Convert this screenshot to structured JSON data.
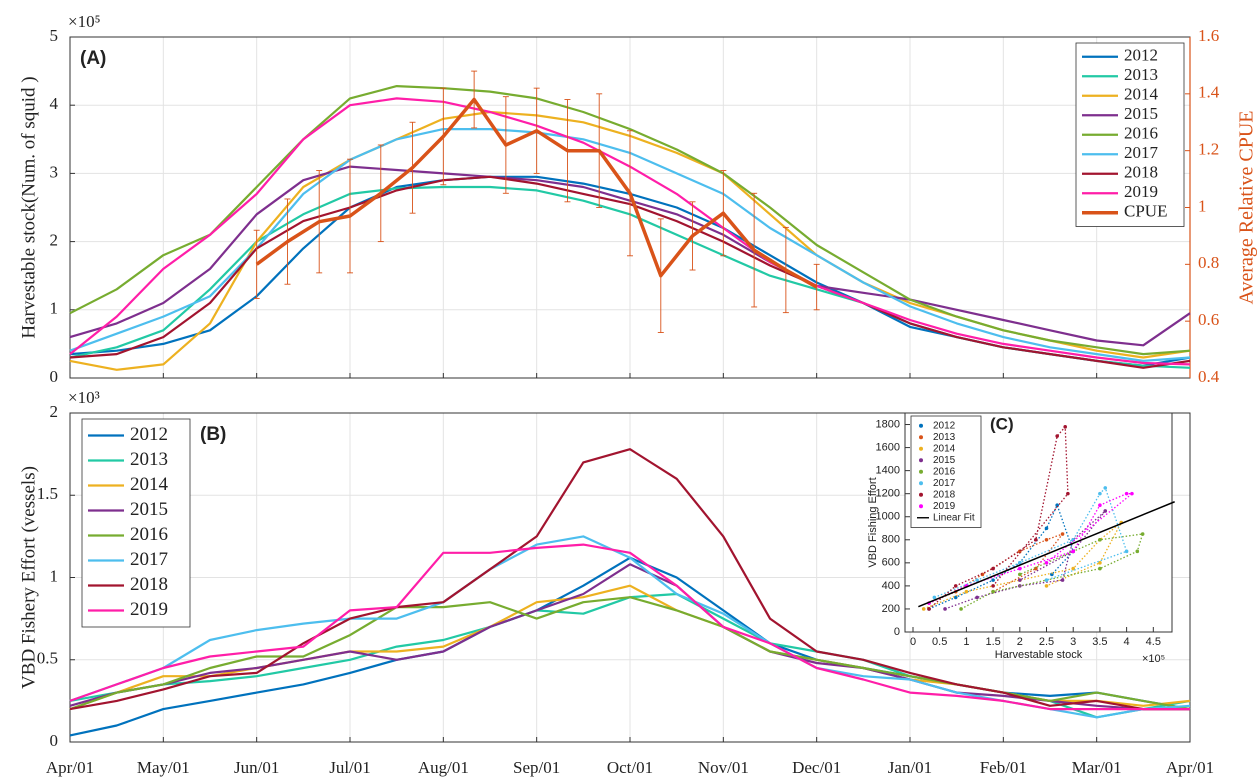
{
  "chart_data": [
    {
      "type": "line",
      "panel_label": "(A)",
      "y_label": "Harvestable stock(Num. of squid )",
      "y_exponent": "×10⁵",
      "y2_label": "Average Relative CPUE",
      "y2_color": "#D95319",
      "x": [
        0,
        0.5,
        1,
        1.5,
        2,
        2.5,
        3,
        3.5,
        4,
        4.5,
        5,
        5.5,
        6,
        6.5,
        7,
        7.5,
        8,
        8.5,
        9,
        9.5,
        10,
        10.5,
        11,
        11.5,
        12
      ],
      "xlim": [
        0,
        12
      ],
      "xticks": [
        0,
        1,
        2,
        3,
        4,
        5,
        6,
        7,
        8,
        9,
        10,
        11,
        12
      ],
      "ylim": [
        0,
        5
      ],
      "yticks": [
        0,
        1,
        2,
        3,
        4,
        5
      ],
      "y2lim": [
        0.4,
        1.6
      ],
      "y2ticks": [
        0.4,
        0.6,
        0.8,
        1,
        1.2,
        1.4,
        1.6
      ],
      "grid": true,
      "legend": "upper right",
      "series": [
        {
          "name": "2012",
          "color": "#0072BD",
          "values": [
            0.35,
            0.4,
            0.5,
            0.7,
            1.2,
            1.9,
            2.5,
            2.8,
            2.9,
            2.95,
            2.95,
            2.85,
            2.7,
            2.5,
            2.2,
            1.8,
            1.4,
            1.1,
            0.75,
            0.6,
            0.45,
            0.35,
            0.25,
            0.18,
            0.3
          ]
        },
        {
          "name": "2013",
          "color": "#22C9A5",
          "values": [
            0.3,
            0.45,
            0.7,
            1.3,
            2.0,
            2.4,
            2.7,
            2.78,
            2.8,
            2.8,
            2.75,
            2.6,
            2.4,
            2.1,
            1.8,
            1.5,
            1.3,
            1.1,
            0.8,
            0.6,
            0.45,
            0.35,
            0.25,
            0.18,
            0.15
          ]
        },
        {
          "name": "2014",
          "color": "#EDB120",
          "values": [
            0.25,
            0.12,
            0.2,
            0.8,
            2.0,
            2.8,
            3.2,
            3.5,
            3.8,
            3.9,
            3.85,
            3.75,
            3.55,
            3.3,
            3.0,
            2.4,
            1.8,
            1.4,
            1.1,
            0.9,
            0.7,
            0.55,
            0.4,
            0.3,
            0.4
          ]
        },
        {
          "name": "2015",
          "color": "#7E2F8E",
          "values": [
            0.6,
            0.8,
            1.1,
            1.6,
            2.4,
            2.9,
            3.1,
            3.05,
            3.0,
            2.95,
            2.9,
            2.8,
            2.6,
            2.4,
            2.1,
            1.7,
            1.35,
            1.25,
            1.15,
            1.0,
            0.85,
            0.7,
            0.55,
            0.48,
            0.95
          ]
        },
        {
          "name": "2016",
          "color": "#77AC30",
          "values": [
            0.95,
            1.3,
            1.8,
            2.1,
            2.8,
            3.5,
            4.1,
            4.28,
            4.25,
            4.2,
            4.1,
            3.9,
            3.65,
            3.35,
            3.0,
            2.5,
            1.95,
            1.55,
            1.15,
            0.9,
            0.7,
            0.55,
            0.45,
            0.35,
            0.4
          ]
        },
        {
          "name": "2017",
          "color": "#4DBEEE",
          "values": [
            0.4,
            0.65,
            0.9,
            1.2,
            1.9,
            2.7,
            3.2,
            3.5,
            3.65,
            3.65,
            3.6,
            3.5,
            3.3,
            3.0,
            2.7,
            2.2,
            1.8,
            1.4,
            1.05,
            0.8,
            0.6,
            0.45,
            0.35,
            0.25,
            0.3
          ]
        },
        {
          "name": "2018",
          "color": "#A2142F",
          "values": [
            0.3,
            0.35,
            0.6,
            1.1,
            1.9,
            2.3,
            2.5,
            2.75,
            2.9,
            2.95,
            2.85,
            2.7,
            2.55,
            2.3,
            2.0,
            1.65,
            1.35,
            1.1,
            0.8,
            0.6,
            0.45,
            0.35,
            0.25,
            0.15,
            0.25
          ]
        },
        {
          "name": "2019",
          "color": "#FF1EA8",
          "values": [
            0.35,
            0.9,
            1.6,
            2.1,
            2.7,
            3.5,
            4.0,
            4.1,
            4.05,
            3.9,
            3.7,
            3.45,
            3.1,
            2.7,
            2.2,
            1.7,
            1.35,
            1.1,
            0.85,
            0.65,
            0.5,
            0.4,
            0.3,
            0.22,
            0.2
          ]
        },
        {
          "name": "CPUE",
          "color": "#D95319",
          "axis": "y2",
          "x": [
            2.0,
            2.33,
            2.67,
            3.0,
            3.33,
            3.67,
            4.0,
            4.33,
            4.67,
            5.0,
            5.33,
            5.67,
            6.0,
            6.33,
            6.67,
            7.0,
            7.33,
            7.67,
            8.0
          ],
          "values": [
            0.8,
            0.88,
            0.95,
            0.97,
            1.05,
            1.14,
            1.25,
            1.38,
            1.22,
            1.27,
            1.2,
            1.2,
            1.05,
            0.76,
            0.9,
            0.98,
            0.85,
            0.78,
            0.72
          ],
          "errors": [
            0.12,
            0.15,
            0.18,
            0.2,
            0.17,
            0.16,
            0.17,
            0.1,
            0.17,
            0.15,
            0.18,
            0.2,
            0.22,
            0.2,
            0.12,
            0.15,
            0.2,
            0.15,
            0.08
          ]
        }
      ]
    },
    {
      "type": "line",
      "panel_label": "(B)",
      "y_label": "VBD Fishery Effort (vessels)",
      "y_exponent": "×10³",
      "x": [
        0,
        0.5,
        1,
        1.5,
        2,
        2.5,
        3,
        3.5,
        4,
        4.5,
        5,
        5.5,
        6,
        6.5,
        7,
        7.5,
        8,
        8.5,
        9,
        9.5,
        10,
        10.5,
        11,
        11.5,
        12
      ],
      "xlim": [
        0,
        12
      ],
      "xticks": [
        {
          "value": 0,
          "label": "Apr/01"
        },
        {
          "value": 1,
          "label": "May/01"
        },
        {
          "value": 2,
          "label": "Jun/01"
        },
        {
          "value": 3,
          "label": "Jul/01"
        },
        {
          "value": 4,
          "label": "Aug/01"
        },
        {
          "value": 5,
          "label": "Sep/01"
        },
        {
          "value": 6,
          "label": "Oct/01"
        },
        {
          "value": 7,
          "label": "Nov/01"
        },
        {
          "value": 8,
          "label": "Dec/01"
        },
        {
          "value": 9,
          "label": "Jan/01"
        },
        {
          "value": 10,
          "label": "Feb/01"
        },
        {
          "value": 11,
          "label": "Mar/01"
        },
        {
          "value": 12,
          "label": "Apr/01"
        }
      ],
      "ylim": [
        0,
        2
      ],
      "yticks": [
        0,
        0.5,
        1,
        1.5,
        2
      ],
      "grid": true,
      "legend": "upper left",
      "series": [
        {
          "name": "2012",
          "color": "#0072BD",
          "values": [
            0.04,
            0.1,
            0.2,
            0.25,
            0.3,
            0.35,
            0.42,
            0.5,
            0.55,
            0.7,
            0.8,
            0.95,
            1.12,
            1.0,
            0.8,
            0.6,
            0.5,
            0.45,
            0.4,
            0.35,
            0.3,
            0.28,
            0.3,
            0.25,
            0.2
          ]
        },
        {
          "name": "2013",
          "color": "#22C9A5",
          "values": [
            0.25,
            0.3,
            0.35,
            0.37,
            0.4,
            0.45,
            0.5,
            0.58,
            0.62,
            0.7,
            0.8,
            0.78,
            0.88,
            0.9,
            0.75,
            0.6,
            0.55,
            0.5,
            0.4,
            0.35,
            0.3,
            0.25,
            0.15,
            0.2,
            0.25
          ]
        },
        {
          "name": "2014",
          "color": "#EDB120",
          "values": [
            0.2,
            0.3,
            0.4,
            0.4,
            0.45,
            0.5,
            0.55,
            0.55,
            0.58,
            0.7,
            0.85,
            0.88,
            0.95,
            0.8,
            0.7,
            0.55,
            0.5,
            0.45,
            0.38,
            0.35,
            0.3,
            0.25,
            0.25,
            0.22,
            0.25
          ]
        },
        {
          "name": "2015",
          "color": "#7E2F8E",
          "values": [
            0.22,
            0.3,
            0.35,
            0.42,
            0.45,
            0.5,
            0.55,
            0.5,
            0.55,
            0.7,
            0.8,
            0.9,
            1.08,
            0.95,
            0.7,
            0.55,
            0.48,
            0.45,
            0.38,
            0.3,
            0.28,
            0.25,
            0.22,
            0.2,
            0.2
          ]
        },
        {
          "name": "2016",
          "color": "#77AC30",
          "values": [
            0.2,
            0.3,
            0.35,
            0.45,
            0.52,
            0.52,
            0.65,
            0.82,
            0.82,
            0.85,
            0.75,
            0.85,
            0.88,
            0.8,
            0.7,
            0.55,
            0.5,
            0.45,
            0.4,
            0.35,
            0.3,
            0.25,
            0.3,
            0.25,
            0.2
          ]
        },
        {
          "name": "2017",
          "color": "#4DBEEE",
          "values": [
            0.25,
            0.35,
            0.45,
            0.62,
            0.68,
            0.72,
            0.75,
            0.75,
            0.85,
            1.05,
            1.2,
            1.25,
            1.12,
            0.9,
            0.78,
            0.6,
            0.45,
            0.4,
            0.38,
            0.3,
            0.25,
            0.2,
            0.15,
            0.2,
            0.22
          ]
        },
        {
          "name": "2018",
          "color": "#A2142F",
          "values": [
            0.2,
            0.25,
            0.32,
            0.4,
            0.42,
            0.6,
            0.75,
            0.82,
            0.85,
            1.05,
            1.25,
            1.7,
            1.78,
            1.6,
            1.25,
            0.75,
            0.55,
            0.5,
            0.42,
            0.35,
            0.3,
            0.22,
            0.25,
            0.2,
            0.2
          ]
        },
        {
          "name": "2019",
          "color": "#FF1EA8",
          "values": [
            0.25,
            0.35,
            0.45,
            0.52,
            0.55,
            0.58,
            0.8,
            0.82,
            1.15,
            1.15,
            1.18,
            1.2,
            1.15,
            0.95,
            0.7,
            0.6,
            0.45,
            0.38,
            0.3,
            0.28,
            0.25,
            0.2,
            0.2,
            0.2,
            0.2
          ]
        }
      ]
    },
    {
      "type": "scatter",
      "panel_label": "(C)",
      "x_label": "Harvestable stock",
      "y_label": "VBD Fishing Effort",
      "x_exponent": "×10⁵",
      "xlim": [
        -0.15,
        4.85
      ],
      "xticks": [
        0,
        0.5,
        1,
        1.5,
        2,
        2.5,
        3,
        3.5,
        4,
        4.5
      ],
      "ylim": [
        0,
        1900
      ],
      "yticks": [
        0,
        200,
        400,
        600,
        800,
        1000,
        1200,
        1400,
        1600,
        1800
      ],
      "grid": false,
      "legend": "upper left",
      "series": [
        {
          "name": "2012",
          "color": "#0072BD",
          "x": [
            0.3,
            0.8,
            1.5,
            2.0,
            2.5,
            2.7,
            3.0,
            2.6
          ],
          "values": [
            200,
            300,
            450,
            600,
            900,
            1100,
            700,
            500
          ]
        },
        {
          "name": "2013",
          "color": "#D95319",
          "x": [
            0.3,
            0.8,
            1.3,
            2.0,
            2.5,
            2.8,
            2.3,
            1.5
          ],
          "values": [
            250,
            350,
            500,
            700,
            800,
            850,
            550,
            350
          ]
        },
        {
          "name": "2014",
          "color": "#EDB120",
          "x": [
            0.2,
            1.0,
            2.0,
            3.0,
            3.5,
            3.9,
            3.5,
            2.5
          ],
          "values": [
            200,
            350,
            450,
            550,
            800,
            950,
            600,
            400
          ]
        },
        {
          "name": "2015",
          "color": "#7E2F8E",
          "x": [
            0.6,
            1.2,
            2.0,
            2.8,
            3.0,
            3.6,
            3.0,
            2.0
          ],
          "values": [
            200,
            300,
            400,
            450,
            800,
            1050,
            700,
            450
          ]
        },
        {
          "name": "2016",
          "color": "#77AC30",
          "x": [
            0.9,
            1.5,
            2.5,
            3.5,
            4.2,
            4.3,
            3.5,
            2.0
          ],
          "values": [
            200,
            350,
            450,
            550,
            700,
            850,
            800,
            500
          ]
        },
        {
          "name": "2017",
          "color": "#4DBEEE",
          "x": [
            0.4,
            1.2,
            2.0,
            3.0,
            3.5,
            3.6,
            4.0,
            2.5
          ],
          "values": [
            300,
            450,
            600,
            800,
            1200,
            1250,
            700,
            450
          ]
        },
        {
          "name": "2018",
          "color": "#A2142F",
          "x": [
            0.3,
            0.8,
            1.5,
            2.3,
            2.7,
            2.85,
            2.9,
            1.5
          ],
          "values": [
            200,
            400,
            550,
            800,
            1700,
            1780,
            1200,
            400
          ]
        },
        {
          "name": "2019",
          "color": "#FF00FF",
          "x": [
            0.3,
            1.0,
            2.0,
            3.0,
            3.5,
            4.0,
            4.1,
            2.5
          ],
          "values": [
            250,
            400,
            550,
            700,
            1100,
            1200,
            1200,
            600
          ]
        }
      ],
      "fit": {
        "name": "Linear Fit",
        "color": "#000000",
        "x": [
          0.1,
          4.9
        ],
        "values": [
          220,
          1130
        ]
      }
    }
  ]
}
